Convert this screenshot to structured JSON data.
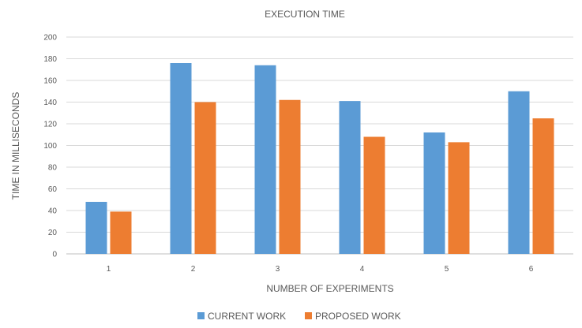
{
  "chart_data": {
    "type": "bar",
    "title": "EXECUTION TIME",
    "xlabel": "NUMBER OF EXPERIMENTS",
    "ylabel": "TIME IN MILLISECONDS",
    "categories": [
      "1",
      "2",
      "3",
      "4",
      "5",
      "6"
    ],
    "series": [
      {
        "name": "CURRENT WORK",
        "color": "#5b9bd5",
        "values": [
          48,
          176,
          174,
          141,
          112,
          150
        ]
      },
      {
        "name": "PROPOSED WORK",
        "color": "#ed7d31",
        "values": [
          39,
          140,
          142,
          108,
          103,
          125
        ]
      }
    ],
    "ylim": [
      0,
      200
    ],
    "yticks": [
      0,
      20,
      40,
      60,
      80,
      100,
      120,
      140,
      160,
      180,
      200
    ],
    "grid": true,
    "legend_position": "bottom-center"
  }
}
